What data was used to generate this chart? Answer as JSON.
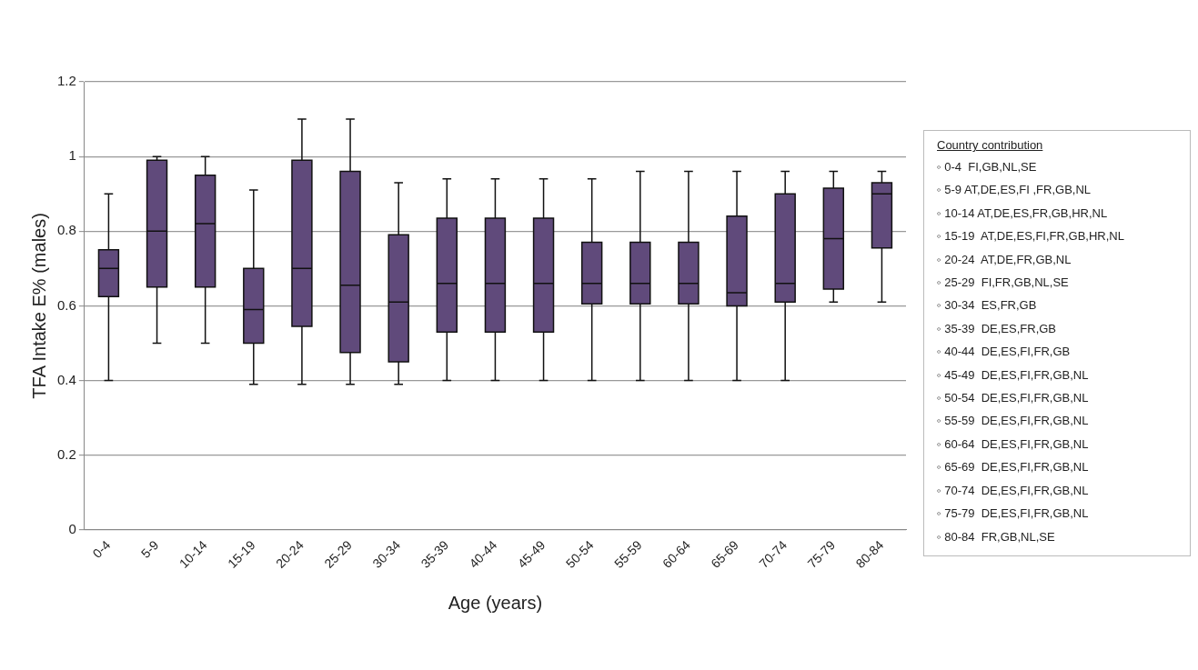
{
  "chart_data": {
    "type": "box",
    "xlabel": "Age (years)",
    "ylabel": "TFA Intake E% (males)",
    "categories": [
      "0-4",
      "5-9",
      "10-14",
      "15-19",
      "20-24",
      "25-29",
      "30-34",
      "35-39",
      "40-44",
      "45-49",
      "50-54",
      "55-59",
      "60-64",
      "65-69",
      "70-74",
      "75-79",
      "80-84"
    ],
    "color": "#604a7b",
    "boxes": [
      {
        "low": 0.4,
        "q1": 0.625,
        "median": 0.7,
        "q3": 0.75,
        "high": 0.9
      },
      {
        "low": 0.5,
        "q1": 0.65,
        "median": 0.8,
        "q3": 0.99,
        "high": 1.0
      },
      {
        "low": 0.5,
        "q1": 0.65,
        "median": 0.82,
        "q3": 0.95,
        "high": 1.0
      },
      {
        "low": 0.39,
        "q1": 0.5,
        "median": 0.59,
        "q3": 0.7,
        "high": 0.91
      },
      {
        "low": 0.39,
        "q1": 0.545,
        "median": 0.7,
        "q3": 0.99,
        "high": 1.1
      },
      {
        "low": 0.39,
        "q1": 0.475,
        "median": 0.655,
        "q3": 0.96,
        "high": 1.1
      },
      {
        "low": 0.39,
        "q1": 0.45,
        "median": 0.61,
        "q3": 0.79,
        "high": 0.93
      },
      {
        "low": 0.4,
        "q1": 0.53,
        "median": 0.66,
        "q3": 0.835,
        "high": 0.94
      },
      {
        "low": 0.4,
        "q1": 0.53,
        "median": 0.66,
        "q3": 0.835,
        "high": 0.94
      },
      {
        "low": 0.4,
        "q1": 0.53,
        "median": 0.66,
        "q3": 0.835,
        "high": 0.94
      },
      {
        "low": 0.4,
        "q1": 0.605,
        "median": 0.66,
        "q3": 0.77,
        "high": 0.94
      },
      {
        "low": 0.4,
        "q1": 0.605,
        "median": 0.66,
        "q3": 0.77,
        "high": 0.96
      },
      {
        "low": 0.4,
        "q1": 0.605,
        "median": 0.66,
        "q3": 0.77,
        "high": 0.96
      },
      {
        "low": 0.4,
        "q1": 0.6,
        "median": 0.635,
        "q3": 0.84,
        "high": 0.96
      },
      {
        "low": 0.4,
        "q1": 0.61,
        "median": 0.66,
        "q3": 0.9,
        "high": 0.96
      },
      {
        "low": 0.61,
        "q1": 0.645,
        "median": 0.78,
        "q3": 0.915,
        "high": 0.96
      },
      {
        "low": 0.61,
        "q1": 0.755,
        "median": 0.9,
        "q3": 0.93,
        "high": 0.96
      }
    ],
    "ylim": [
      0,
      1.2
    ],
    "yticks": [
      0,
      0.2,
      0.4,
      0.6,
      0.8,
      1,
      1.2
    ],
    "grid": "y",
    "annotations": [
      "Country contribution",
      "◦ 0-4  FI,GB,NL,SE",
      "◦ 5-9 AT,DE,ES,FI ,FR,GB,NL",
      "◦ 10-14 AT,DE,ES,FR,GB,HR,NL",
      "◦ 15-19  AT,DE,ES,FI,FR,GB,HR,NL",
      "◦ 20-24  AT,DE,FR,GB,NL",
      "◦ 25-29  FI,FR,GB,NL,SE",
      "◦ 30-34  ES,FR,GB",
      "◦ 35-39  DE,ES,FR,GB",
      "◦ 40-44  DE,ES,FI,FR,GB",
      "◦ 45-49  DE,ES,FI,FR,GB,NL",
      "◦ 50-54  DE,ES,FI,FR,GB,NL",
      "◦ 55-59  DE,ES,FI,FR,GB,NL",
      "◦ 60-64  DE,ES,FI,FR,GB,NL",
      "◦ 65-69  DE,ES,FI,FR,GB,NL",
      "◦ 70-74  DE,ES,FI,FR,GB,NL",
      "◦ 75-79  DE,ES,FI,FR,GB,NL",
      "◦ 80-84  FR,GB,NL,SE"
    ]
  }
}
